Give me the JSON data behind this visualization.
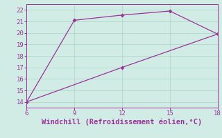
{
  "line1_x": [
    6,
    9,
    12,
    15,
    18
  ],
  "line1_y": [
    14,
    21.1,
    21.55,
    21.9,
    19.9
  ],
  "line2_x": [
    6,
    12,
    18
  ],
  "line2_y": [
    14,
    17,
    19.9
  ],
  "color": "#993399",
  "bg_color": "#d0ece4",
  "grid_color": "#b0d8c8",
  "xlabel": "Windchill (Refroidissement éolien,°C)",
  "xlim": [
    6,
    18
  ],
  "ylim": [
    13.5,
    22.5
  ],
  "xticks": [
    6,
    9,
    12,
    15,
    18
  ],
  "yticks": [
    14,
    15,
    16,
    17,
    18,
    19,
    20,
    21,
    22
  ],
  "marker": "D",
  "markersize": 2.5,
  "linewidth": 0.9,
  "xlabel_fontsize": 7.5,
  "tick_fontsize": 6.5
}
